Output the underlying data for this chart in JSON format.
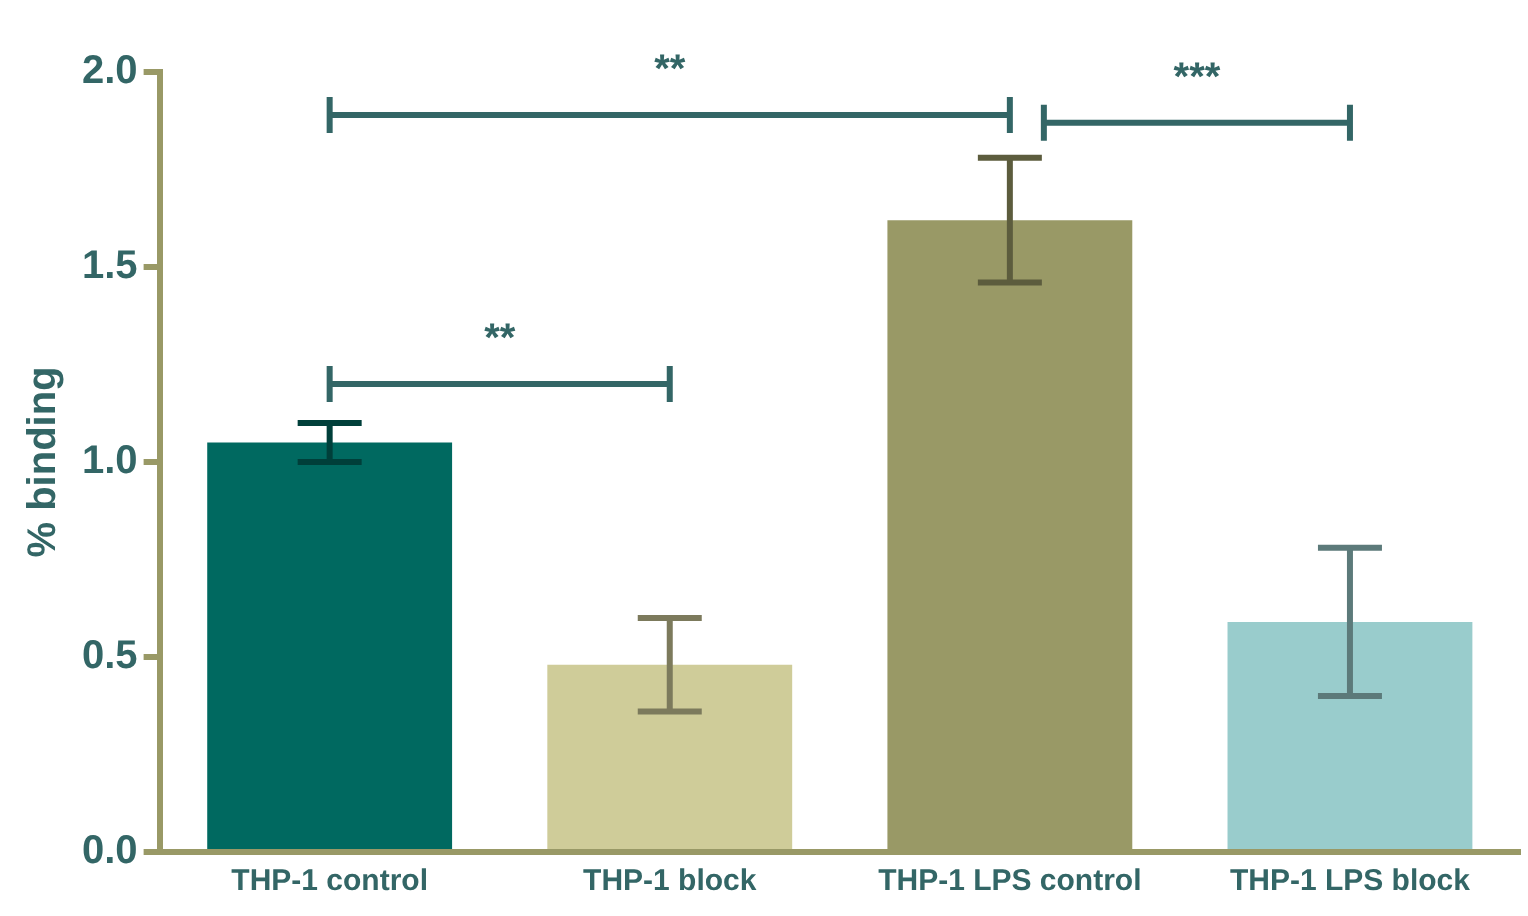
{
  "chart_data": {
    "type": "bar",
    "ylabel": "% binding",
    "categories": [
      "THP-1 control",
      "THP-1 block",
      "THP-1 LPS control",
      "THP-1 LPS block"
    ],
    "values": [
      1.05,
      0.48,
      1.62,
      0.59
    ],
    "errors": [
      0.05,
      0.12,
      0.16,
      0.19
    ],
    "colors": [
      "#006960",
      "#cfcc99",
      "#999966",
      "#99cccc"
    ],
    "ylim": [
      0,
      2.0
    ],
    "yticks": [
      {
        "value": 0,
        "label": "0.0"
      },
      {
        "value": 0.5,
        "label": "0.5"
      },
      {
        "value": 1,
        "label": "1.0"
      },
      {
        "value": 1.5,
        "label": "1.5"
      },
      {
        "value": 2,
        "label": "2.0"
      }
    ],
    "grid": false,
    "legend": false,
    "annotations": [
      "**",
      "**",
      "***"
    ]
  }
}
